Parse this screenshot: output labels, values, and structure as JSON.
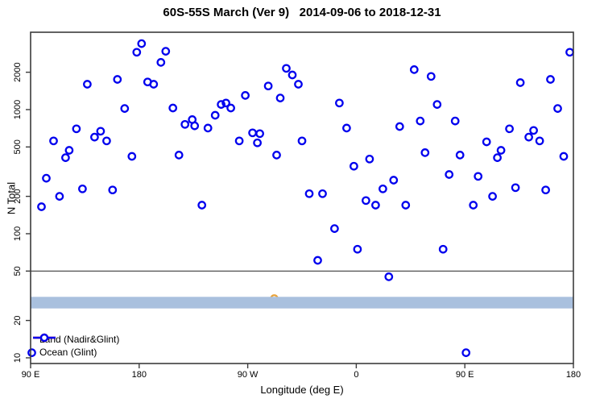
{
  "chart_data": {
    "type": "scatter",
    "title": "60S-55S March (Ver 9)   2014-09-06 to 2018-12-31",
    "xlabel": "Longitude (deg E)",
    "ylabel": "N Total",
    "x_axis": {
      "min": 90,
      "max": 540,
      "note": "longitude axis wraps eastward around the globe (450 deg span)",
      "ticks": [
        {
          "pos": 90,
          "label": "90 E"
        },
        {
          "pos": 180,
          "label": "180"
        },
        {
          "pos": 270,
          "label": "90 W"
        },
        {
          "pos": 360,
          "label": "0"
        },
        {
          "pos": 450,
          "label": "90 E"
        },
        {
          "pos": 540,
          "label": "180"
        }
      ]
    },
    "y_axis": {
      "scale": "log",
      "min": 9,
      "max": 4200,
      "ticks": [
        10,
        20,
        50,
        100,
        200,
        500,
        1000,
        2000
      ]
    },
    "reference_line": {
      "value": 50,
      "color": "#3c3c3c"
    },
    "band": {
      "from": 25,
      "to": 31,
      "color": "#a9c0de"
    },
    "legend": {
      "items": [
        {
          "label": "Land (Nadir&Glint)",
          "color": "#ee0000"
        },
        {
          "label": "Ocean (Glint)",
          "color": "#0000ee"
        }
      ]
    },
    "stray_land_point": {
      "x": 292,
      "value": 30,
      "color": "#e8a33c",
      "note": "tiny marker mostly hidden behind band"
    },
    "series": [
      {
        "name": "Ocean (Glint)",
        "color": "#0000ee",
        "marker": "open-circle",
        "points": [
          [
            91,
            11
          ],
          [
            99,
            165
          ],
          [
            103,
            280
          ],
          [
            109,
            560
          ],
          [
            114,
            200
          ],
          [
            119,
            410
          ],
          [
            122,
            470
          ],
          [
            128,
            700
          ],
          [
            133,
            230
          ],
          [
            137,
            1600
          ],
          [
            143,
            600
          ],
          [
            148,
            670
          ],
          [
            153,
            560
          ],
          [
            158,
            225
          ],
          [
            162,
            1750
          ],
          [
            168,
            1020
          ],
          [
            174,
            420
          ],
          [
            178,
            2900
          ],
          [
            182,
            3400
          ],
          [
            187,
            1670
          ],
          [
            192,
            1600
          ],
          [
            198,
            2400
          ],
          [
            202,
            2950
          ],
          [
            208,
            1030
          ],
          [
            213,
            430
          ],
          [
            218,
            760
          ],
          [
            224,
            830
          ],
          [
            226,
            740
          ],
          [
            232,
            170
          ],
          [
            237,
            710
          ],
          [
            243,
            900
          ],
          [
            248,
            1100
          ],
          [
            252,
            1130
          ],
          [
            256,
            1030
          ],
          [
            263,
            560
          ],
          [
            268,
            1300
          ],
          [
            274,
            650
          ],
          [
            278,
            540
          ],
          [
            280,
            640
          ],
          [
            287,
            1550
          ],
          [
            294,
            430
          ],
          [
            297,
            1240
          ],
          [
            302,
            2150
          ],
          [
            307,
            1900
          ],
          [
            312,
            1600
          ],
          [
            315,
            560
          ],
          [
            321,
            210
          ],
          [
            328,
            61
          ],
          [
            332,
            210
          ],
          [
            342,
            110
          ],
          [
            346,
            1130
          ],
          [
            352,
            710
          ],
          [
            358,
            350
          ],
          [
            361,
            75
          ],
          [
            368,
            185
          ],
          [
            371,
            400
          ],
          [
            376,
            170
          ],
          [
            382,
            230
          ],
          [
            387,
            45
          ],
          [
            391,
            270
          ],
          [
            396,
            730
          ],
          [
            401,
            170
          ],
          [
            408,
            2100
          ],
          [
            413,
            810
          ],
          [
            417,
            450
          ],
          [
            422,
            1850
          ],
          [
            427,
            1100
          ],
          [
            432,
            75
          ],
          [
            437,
            300
          ],
          [
            442,
            810
          ],
          [
            446,
            430
          ],
          [
            451,
            11
          ],
          [
            457,
            170
          ],
          [
            461,
            290
          ],
          [
            468,
            550
          ],
          [
            473,
            200
          ],
          [
            477,
            410
          ],
          [
            480,
            470
          ],
          [
            487,
            700
          ],
          [
            492,
            235
          ],
          [
            496,
            1650
          ],
          [
            503,
            600
          ],
          [
            507,
            680
          ],
          [
            512,
            560
          ],
          [
            517,
            225
          ],
          [
            521,
            1750
          ],
          [
            527,
            1020
          ],
          [
            532,
            420
          ],
          [
            537,
            2900
          ]
        ]
      }
    ]
  }
}
